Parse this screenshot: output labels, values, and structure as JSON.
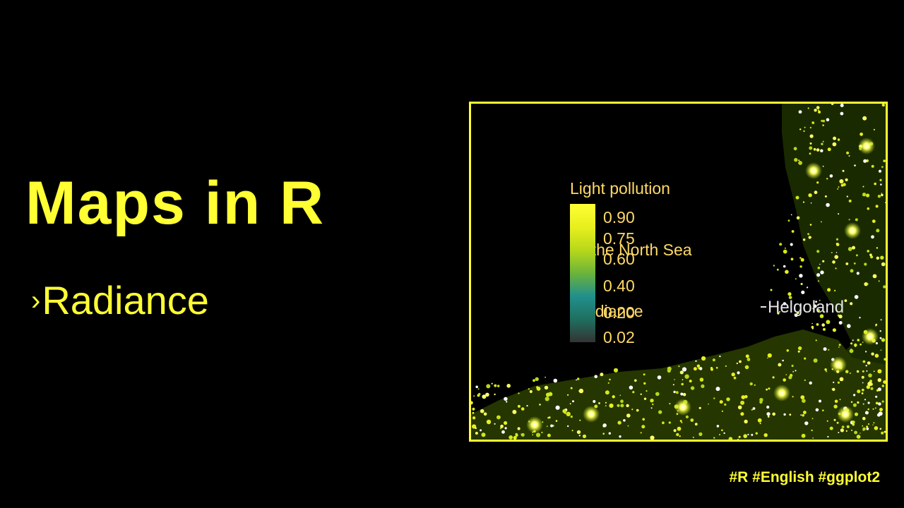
{
  "slide": {
    "title": "Maps in R",
    "subtitle": "Radiance",
    "subtitle_marker": "›",
    "hashtags": "#R #English #ggplot2"
  },
  "map": {
    "legend_title_lines": [
      "Light pollution",
      " in the North Sea",
      " Radiance"
    ],
    "legend_ticks": [
      "0.90",
      "0.75",
      "0.60",
      "0.40",
      "0.20",
      "0.02"
    ],
    "place_label": "Helgoland"
  },
  "colors": {
    "background": "#000000",
    "accent_yellow": "#ffff33",
    "legend_text": "#ffd966",
    "place_label": "#e6e6e6",
    "colorbar_gradient": [
      "#ffff33",
      "#e8ef1e",
      "#b8d81a",
      "#6cb43a",
      "#21908c",
      "#1f6f60",
      "#333333"
    ]
  }
}
